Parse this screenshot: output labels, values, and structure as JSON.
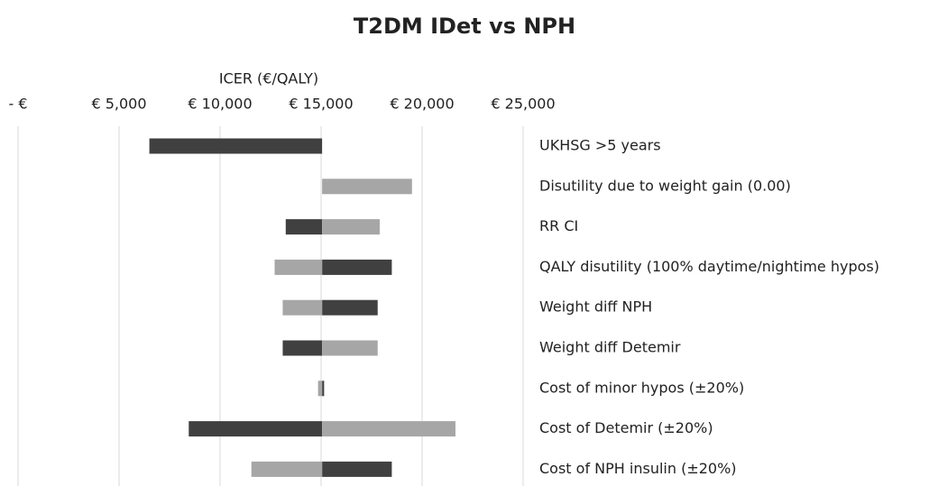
{
  "chart_data": {
    "type": "tornado",
    "title": "T2DM IDet vs NPH",
    "x_label": "ICER (€/QALY)",
    "categories": [
      "UKHSG >5 years",
      "Disutility due to weight gain (0.00)",
      "RR CI",
      "QALY disutility (100% daytime/nightime hypos)",
      "Weight diff NPH",
      "Weight diff Detemir",
      "Cost of minor hypos (±20%)",
      "Cost of Detemir (±20%)",
      "Cost of NPH insulin (±20%)"
    ],
    "base": 15050,
    "series": [
      {
        "color": "#404040",
        "values": [
          6500,
          null,
          13250,
          18500,
          17800,
          13100,
          15150,
          8450,
          18500
        ]
      },
      {
        "color": "#a6a6a6",
        "values": [
          null,
          19500,
          17900,
          12700,
          13100,
          17800,
          14850,
          21650,
          11550
        ]
      }
    ],
    "xlim": [
      0,
      25000
    ],
    "xticks": [
      {
        "value": 0,
        "label": "- €"
      },
      {
        "value": 5000,
        "label": "€ 5,000"
      },
      {
        "value": 10000,
        "label": "€ 10,000"
      },
      {
        "value": 15000,
        "label": "€ 15,000"
      },
      {
        "value": 20000,
        "label": "€ 20,000"
      },
      {
        "value": 25000,
        "label": "€ 25,000"
      }
    ],
    "grid": true
  }
}
